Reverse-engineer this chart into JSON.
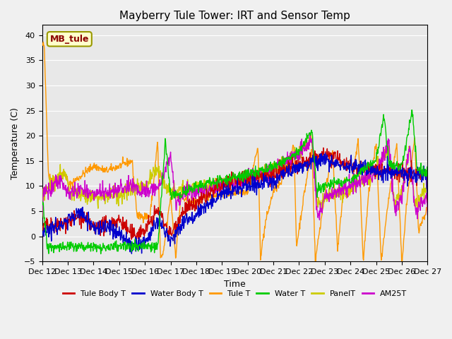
{
  "title": "Mayberry Tule Tower: IRT and Sensor Temp",
  "ylabel": "Temperature (C)",
  "xlabel": "Time",
  "ylim": [
    -5,
    42
  ],
  "yticks": [
    -5,
    0,
    5,
    10,
    15,
    20,
    25,
    30,
    35,
    40
  ],
  "xlim": [
    0,
    15
  ],
  "xtick_days": [
    12,
    13,
    14,
    15,
    16,
    17,
    18,
    19,
    20,
    21,
    22,
    23,
    24,
    25,
    26,
    27
  ],
  "annotation_text": "MB_tule",
  "fig_facecolor": "#f0f0f0",
  "ax_facecolor": "#e8e8e8",
  "grid_color": "#ffffff",
  "legend_entries": [
    "Tule Body T",
    "Water Body T",
    "Tule T",
    "Water T",
    "PanelT",
    "AM25T"
  ],
  "legend_colors": [
    "#cc0000",
    "#0000cc",
    "#ff9900",
    "#00cc00",
    "#cccc00",
    "#cc00cc"
  ],
  "line_width": 1.0,
  "title_fontsize": 11,
  "label_fontsize": 9,
  "tick_fontsize": 8,
  "legend_fontsize": 8
}
